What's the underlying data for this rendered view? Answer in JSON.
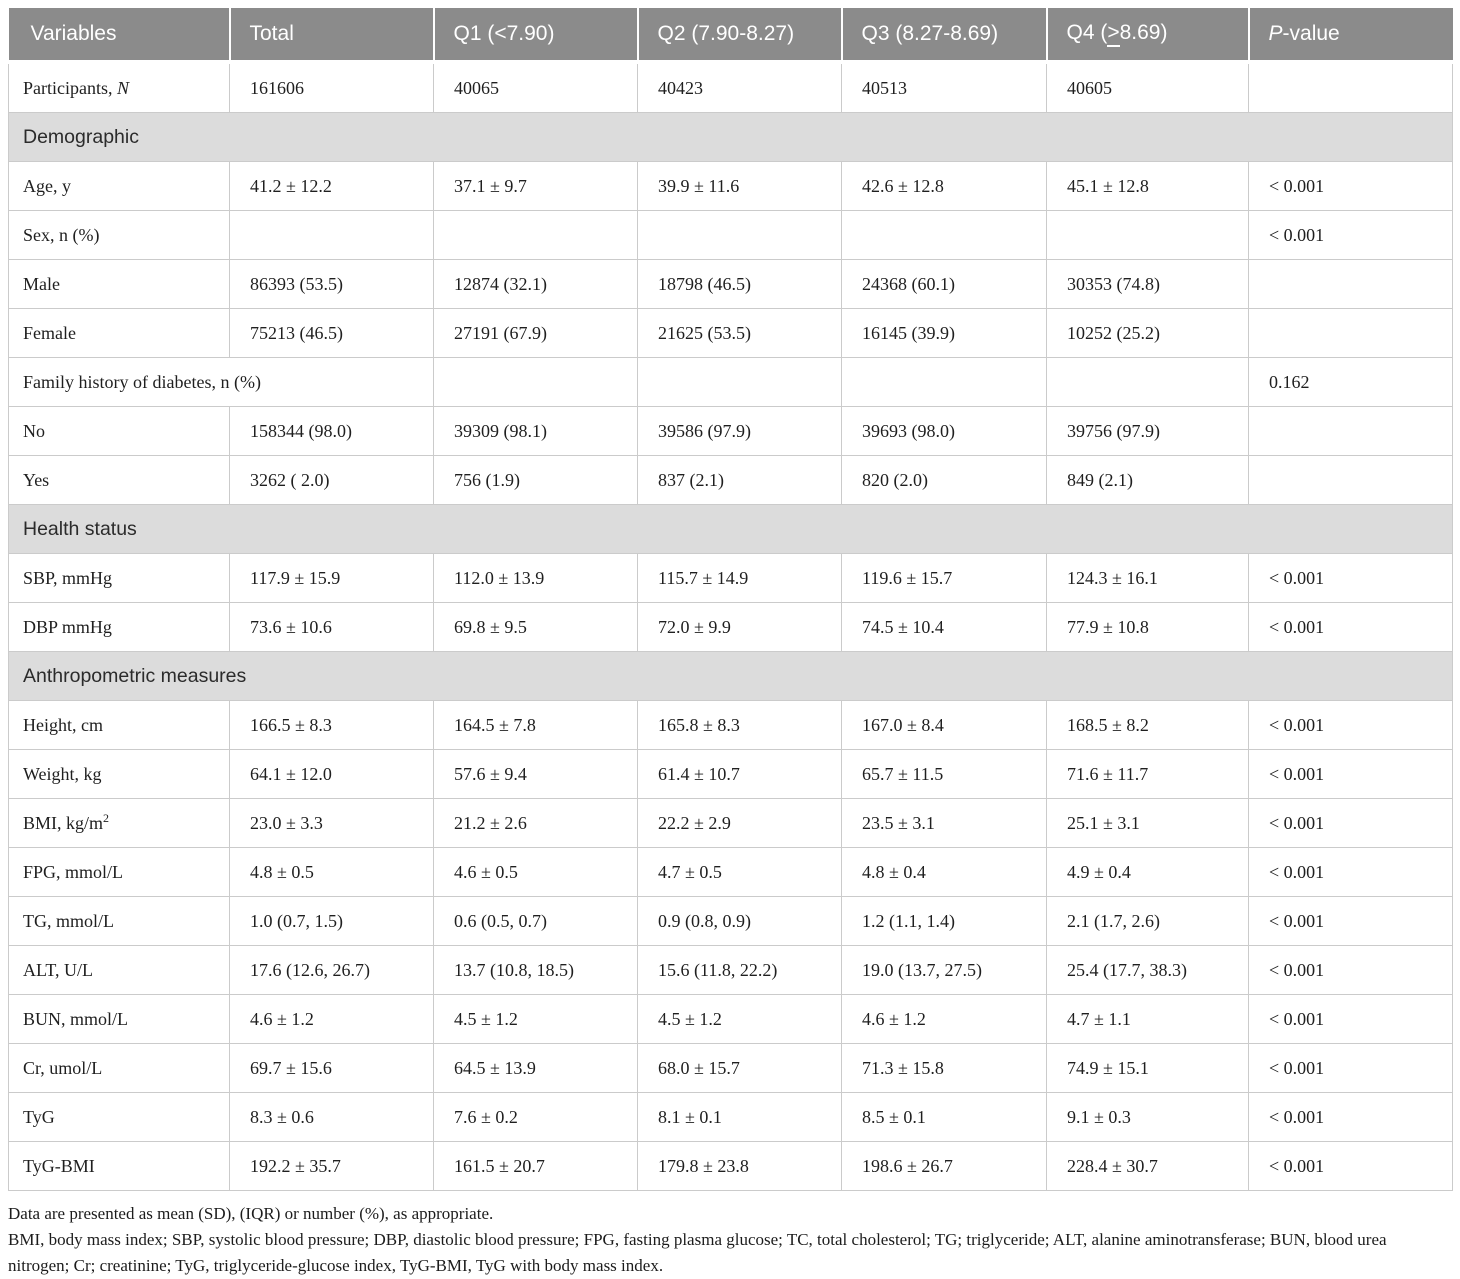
{
  "colors": {
    "header_bg": "#8b8b8b",
    "header_fg": "#ffffff",
    "section_bg": "#dcdcdc",
    "grid_border": "#cbcbcb"
  },
  "table": {
    "columns": [
      {
        "label": "Variables"
      },
      {
        "label": "Total"
      },
      {
        "label": "Q1 (<7.90)"
      },
      {
        "label": "Q2 (7.90-8.27)"
      },
      {
        "label": "Q3 (8.27-8.69)"
      },
      {
        "label": "Q4 (≥8.69)"
      },
      {
        "label": "P-value",
        "italic_first": true
      }
    ],
    "rows": [
      {
        "type": "data",
        "label": {
          "text": "Participants, ",
          "italic": "N"
        },
        "values": [
          "161606",
          "40065",
          "40423",
          "40513",
          "40605",
          ""
        ]
      },
      {
        "type": "section",
        "label": "Demographic"
      },
      {
        "type": "data",
        "label": "Age, y",
        "values": [
          "41.2 ± 12.2",
          "37.1 ± 9.7",
          "39.9 ± 11.6",
          "42.6 ± 12.8",
          "45.1 ± 12.8",
          "< 0.001"
        ]
      },
      {
        "type": "data",
        "label": "Sex, n (%)",
        "values": [
          "",
          "",
          "",
          "",
          "",
          "< 0.001"
        ]
      },
      {
        "type": "data",
        "label": "Male",
        "values": [
          "86393 (53.5)",
          "12874 (32.1)",
          "18798 (46.5)",
          "24368 (60.1)",
          "30353 (74.8)",
          ""
        ]
      },
      {
        "type": "data",
        "label": "Female",
        "values": [
          "75213 (46.5)",
          "27191 (67.9)",
          "21625 (53.5)",
          "16145 (39.9)",
          "10252 (25.2)",
          ""
        ]
      },
      {
        "type": "data",
        "label": "Family history of diabetes, n (%)",
        "label_colspan": 2,
        "values": [
          "",
          "",
          "",
          "",
          "0.162"
        ]
      },
      {
        "type": "data",
        "label": "No",
        "values": [
          "158344 (98.0)",
          "39309 (98.1)",
          "39586 (97.9)",
          "39693 (98.0)",
          "39756 (97.9)",
          ""
        ]
      },
      {
        "type": "data",
        "label": "Yes",
        "values": [
          "3262 ( 2.0)",
          "756 (1.9)",
          "837 (2.1)",
          "820 (2.0)",
          "849 (2.1)",
          ""
        ]
      },
      {
        "type": "section",
        "label": "Health status"
      },
      {
        "type": "data",
        "label": "SBP, mmHg",
        "values": [
          "117.9 ± 15.9",
          "112.0 ± 13.9",
          "115.7 ± 14.9",
          "119.6 ± 15.7",
          "124.3 ± 16.1",
          "< 0.001"
        ]
      },
      {
        "type": "data",
        "label": "DBP mmHg",
        "values": [
          "73.6 ± 10.6",
          "69.8 ± 9.5",
          "72.0 ± 9.9",
          "74.5 ± 10.4",
          "77.9 ± 10.8",
          "< 0.001"
        ]
      },
      {
        "type": "section",
        "label": "Anthropometric measures"
      },
      {
        "type": "data",
        "label": "Height, cm",
        "values": [
          "166.5 ± 8.3",
          "164.5 ± 7.8",
          "165.8 ± 8.3",
          "167.0 ± 8.4",
          "168.5 ± 8.2",
          "< 0.001"
        ]
      },
      {
        "type": "data",
        "label": "Weight, kg",
        "values": [
          "64.1 ± 12.0",
          "57.6 ± 9.4",
          "61.4 ± 10.7",
          "65.7 ± 11.5",
          "71.6 ± 11.7",
          "< 0.001"
        ]
      },
      {
        "type": "data",
        "label": {
          "text": "BMI, kg/m",
          "sup": "2"
        },
        "values": [
          "23.0 ± 3.3",
          "21.2 ± 2.6",
          "22.2 ± 2.9",
          "23.5 ± 3.1",
          "25.1 ± 3.1",
          "< 0.001"
        ]
      },
      {
        "type": "data",
        "label": "FPG, mmol/L",
        "values": [
          "4.8 ± 0.5",
          "4.6 ± 0.5",
          "4.7 ± 0.5",
          "4.8 ± 0.4",
          "4.9 ± 0.4",
          "< 0.001"
        ]
      },
      {
        "type": "data",
        "label": "TG, mmol/L",
        "values": [
          "1.0 (0.7, 1.5)",
          "0.6 (0.5, 0.7)",
          "0.9 (0.8, 0.9)",
          "1.2 (1.1, 1.4)",
          "2.1 (1.7, 2.6)",
          "< 0.001"
        ]
      },
      {
        "type": "data",
        "label": "ALT, U/L",
        "values": [
          "17.6 (12.6, 26.7)",
          "13.7 (10.8, 18.5)",
          "15.6 (11.8, 22.2)",
          "19.0 (13.7, 27.5)",
          "25.4 (17.7, 38.3)",
          "< 0.001"
        ]
      },
      {
        "type": "data",
        "label": "BUN, mmol/L",
        "values": [
          "4.6 ± 1.2",
          "4.5 ± 1.2",
          "4.5 ± 1.2",
          "4.6 ± 1.2",
          "4.7 ± 1.1",
          "< 0.001"
        ]
      },
      {
        "type": "data",
        "label": "Cr, umol/L",
        "values": [
          "69.7 ± 15.6",
          "64.5 ± 13.9",
          "68.0 ± 15.7",
          "71.3 ± 15.8",
          "74.9 ± 15.1",
          "< 0.001"
        ]
      },
      {
        "type": "data",
        "label": "TyG",
        "values": [
          "8.3 ± 0.6",
          "7.6 ± 0.2",
          "8.1 ± 0.1",
          "8.5 ± 0.1",
          "9.1 ± 0.3",
          "< 0.001"
        ]
      },
      {
        "type": "data",
        "label": "TyG-BMI",
        "values": [
          "192.2 ± 35.7",
          "161.5 ± 20.7",
          "179.8 ± 23.8",
          "198.6 ± 26.7",
          "228.4 ± 30.7",
          "< 0.001"
        ]
      }
    ]
  },
  "footnotes": {
    "line1": "Data are presented as mean (SD), (IQR) or number (%), as appropriate.",
    "line2": "BMI, body mass index; SBP, systolic blood pressure; DBP, diastolic blood pressure; FPG, fasting plasma glucose; TC, total cholesterol; TG; triglyceride; ALT, alanine aminotransferase; BUN, blood urea nitrogen; Cr; creatinine; TyG, triglyceride-glucose index, TyG-BMI, TyG with body mass index."
  }
}
